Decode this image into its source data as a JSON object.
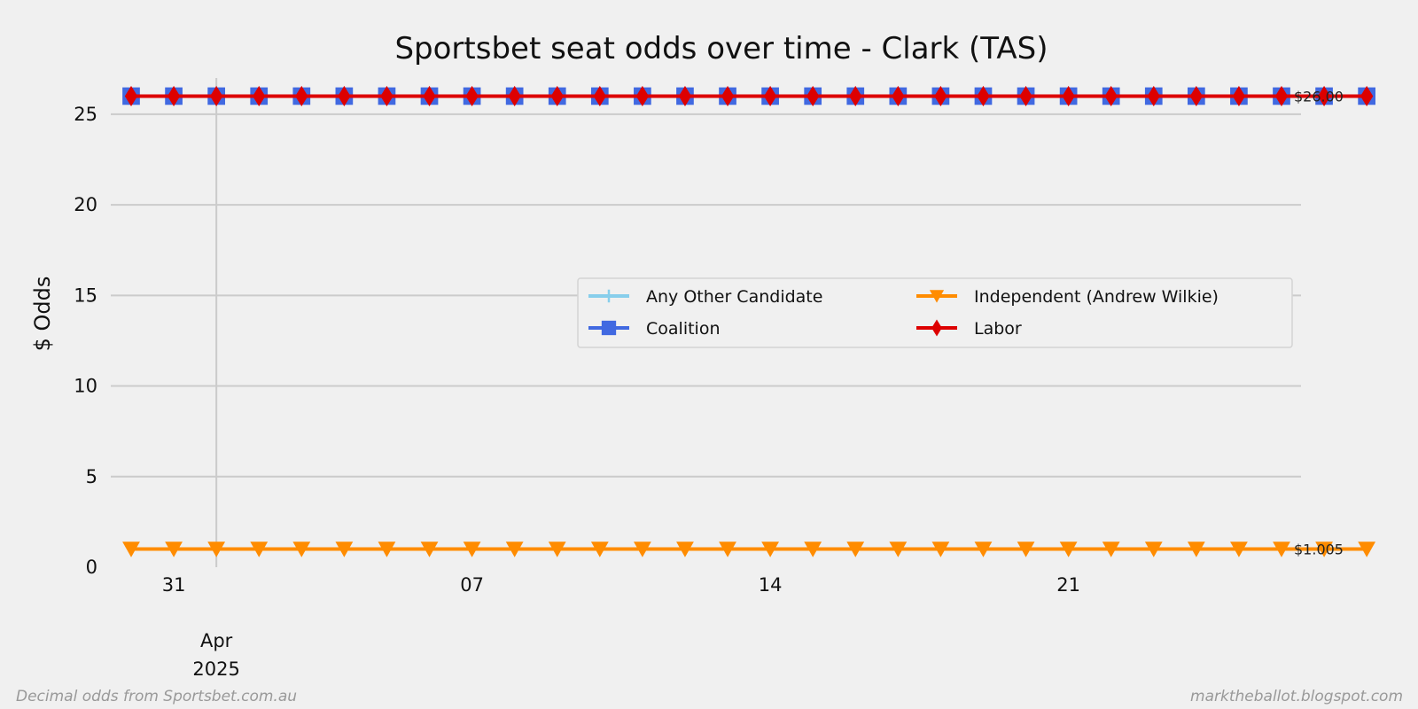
{
  "chart_data": {
    "type": "line",
    "title": "Sportsbet seat odds over time - Clark (TAS)",
    "xlabel": "",
    "ylabel": "$ Odds",
    "ylim": [
      0,
      27
    ],
    "y_ticks": [
      0,
      5,
      10,
      15,
      20,
      25
    ],
    "x_range": [
      "2025-03-30",
      "2025-04-26"
    ],
    "x_major_ticks": [
      {
        "date": "2025-03-31",
        "label": "31"
      },
      {
        "date": "2025-04-07",
        "label": "07"
      },
      {
        "date": "2025-04-14",
        "label": "14"
      },
      {
        "date": "2025-04-21",
        "label": "21"
      }
    ],
    "x_month_label": {
      "date": "2025-04-01",
      "label": "Apr\n2025"
    },
    "x_vertical_gridlines": [
      "2025-04-01",
      "2025-04-28"
    ],
    "x": [
      "2025-03-30",
      "2025-03-31",
      "2025-04-01",
      "2025-04-02",
      "2025-04-03",
      "2025-04-04",
      "2025-04-05",
      "2025-04-06",
      "2025-04-07",
      "2025-04-08",
      "2025-04-09",
      "2025-04-10",
      "2025-04-11",
      "2025-04-12",
      "2025-04-13",
      "2025-04-14",
      "2025-04-15",
      "2025-04-16",
      "2025-04-17",
      "2025-04-18",
      "2025-04-19",
      "2025-04-20",
      "2025-04-21",
      "2025-04-22",
      "2025-04-23",
      "2025-04-24",
      "2025-04-25",
      "2025-04-26",
      "2025-04-27",
      "2025-04-28"
    ],
    "series": [
      {
        "name": "Any Other Candidate",
        "color": "#87ceeb",
        "marker": "plus",
        "values": [
          26,
          26,
          26,
          26,
          26,
          26,
          26,
          26,
          26,
          26,
          26,
          26,
          26,
          26,
          26,
          26,
          26,
          26,
          26,
          26,
          26,
          26,
          26,
          26,
          26,
          26,
          26,
          26,
          26,
          26
        ]
      },
      {
        "name": "Coalition",
        "color": "#4169e1",
        "marker": "square",
        "values": [
          26,
          26,
          26,
          26,
          26,
          26,
          26,
          26,
          26,
          26,
          26,
          26,
          26,
          26,
          26,
          26,
          26,
          26,
          26,
          26,
          26,
          26,
          26,
          26,
          26,
          26,
          26,
          26,
          26,
          26
        ]
      },
      {
        "name": "Independent (Andrew Wilkie)",
        "color": "#ff8c00",
        "marker": "triangle-down",
        "values": [
          1.005,
          1.005,
          1.005,
          1.005,
          1.005,
          1.005,
          1.005,
          1.005,
          1.005,
          1.005,
          1.005,
          1.005,
          1.005,
          1.005,
          1.005,
          1.005,
          1.005,
          1.005,
          1.005,
          1.005,
          1.005,
          1.005,
          1.005,
          1.005,
          1.005,
          1.005,
          1.005,
          1.005,
          1.005,
          1.005
        ]
      },
      {
        "name": "Labor",
        "color": "#dd0000",
        "marker": "diamond",
        "values": [
          26,
          26,
          26,
          26,
          26,
          26,
          26,
          26,
          26,
          26,
          26,
          26,
          26,
          26,
          26,
          26,
          26,
          26,
          26,
          26,
          26,
          26,
          26,
          26,
          26,
          26,
          26,
          26,
          26,
          26
        ]
      }
    ],
    "end_labels": [
      {
        "value": 26,
        "text": "$26.00"
      },
      {
        "value": 1.005,
        "text": "$1.005"
      }
    ],
    "legend": {
      "placement": "center-right",
      "columns": 2
    },
    "grid": true
  },
  "footer": {
    "source": "Decimal odds from Sportsbet.com.au",
    "site": "marktheballot.blogspot.com"
  }
}
